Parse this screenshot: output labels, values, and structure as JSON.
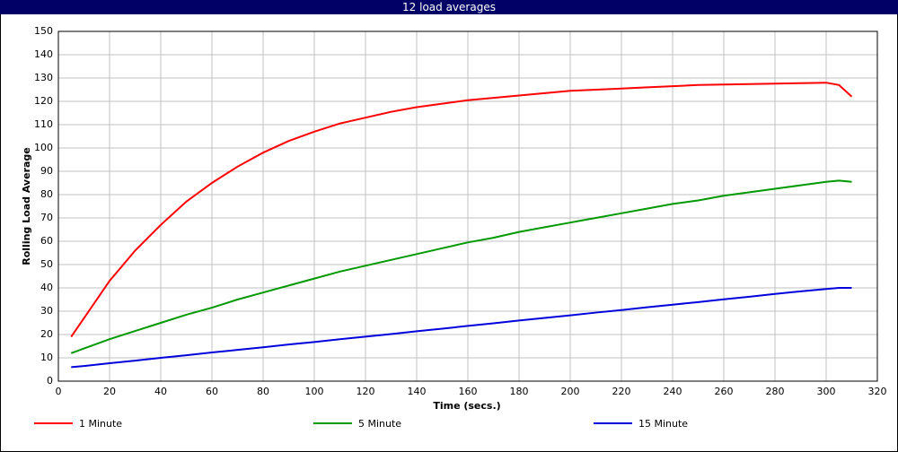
{
  "chart_data": {
    "type": "line",
    "title": "12 load averages",
    "x_label": "Time (secs.)",
    "y_label": "Rolling Load Average",
    "x": [
      5,
      10,
      20,
      30,
      40,
      50,
      60,
      70,
      80,
      90,
      100,
      110,
      120,
      130,
      140,
      150,
      160,
      170,
      180,
      190,
      200,
      210,
      220,
      230,
      240,
      250,
      260,
      270,
      280,
      290,
      300,
      305,
      310
    ],
    "series": [
      {
        "name": "1 Minute",
        "color": "#ff0000",
        "values": [
          19,
          27,
          43,
          56,
          67,
          77,
          85,
          92,
          98,
          103,
          107,
          110.5,
          113,
          115.5,
          117.5,
          119,
          120.5,
          121.5,
          122.5,
          123.5,
          124.5,
          125,
          125.5,
          126,
          126.5,
          127,
          127.2,
          127.4,
          127.6,
          127.8,
          128,
          127,
          122
        ]
      },
      {
        "name": "5 Minute",
        "color": "#009900",
        "values": [
          12,
          14,
          18,
          21.5,
          25,
          28.5,
          31.5,
          35,
          38,
          41,
          44,
          47,
          49.5,
          52,
          54.5,
          57,
          59.5,
          61.5,
          64,
          66,
          68,
          70,
          72,
          74,
          76,
          77.5,
          79.5,
          81,
          82.5,
          84,
          85.5,
          86,
          85.5
        ]
      },
      {
        "name": "15 Minute",
        "color": "#0000dd",
        "values": [
          6,
          6.5,
          7.7,
          8.8,
          10,
          11.1,
          12.3,
          13.4,
          14.5,
          15.7,
          16.8,
          18,
          19.1,
          20.2,
          21.4,
          22.5,
          23.7,
          24.8,
          26,
          27.1,
          28.2,
          29.4,
          30.5,
          31.7,
          32.8,
          33.9,
          35.1,
          36.2,
          37.4,
          38.5,
          39.5,
          40,
          40
        ]
      }
    ],
    "xlim": [
      0,
      320
    ],
    "xticks": [
      0,
      20,
      40,
      60,
      80,
      100,
      120,
      140,
      160,
      180,
      200,
      220,
      240,
      260,
      280,
      300,
      320
    ],
    "ylim": [
      0,
      150
    ],
    "yticks": [
      0,
      10,
      20,
      30,
      40,
      50,
      60,
      70,
      80,
      90,
      100,
      110,
      120,
      130,
      140,
      150
    ],
    "grid": true
  }
}
